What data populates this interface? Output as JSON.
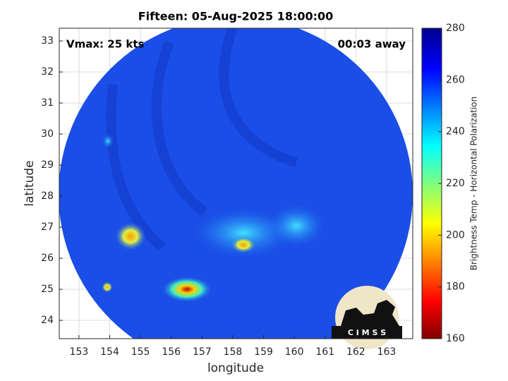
{
  "map": {
    "title": "Fifteen: 05-Aug-2025 18:00:00",
    "annotations": [
      "Vmax: 25 kts",
      "00:03 away"
    ],
    "x_label": "longitude",
    "y_label": "latitude",
    "xlim": [
      152.36,
      163.85
    ],
    "ylim": [
      23.41,
      33.41
    ],
    "xticks": [
      153,
      154,
      155,
      156,
      157,
      158,
      159,
      160,
      161,
      162,
      163
    ],
    "yticks": [
      24,
      25,
      26,
      27,
      28,
      29,
      30,
      31,
      32,
      33
    ],
    "grid": true,
    "colorbar": {
      "label": "Brightness Temp - Horizontal Polarization",
      "lim": [
        160,
        280
      ],
      "ticks": [
        160,
        180,
        200,
        220,
        240,
        260,
        280
      ]
    },
    "logo": "C I M S S"
  }
}
